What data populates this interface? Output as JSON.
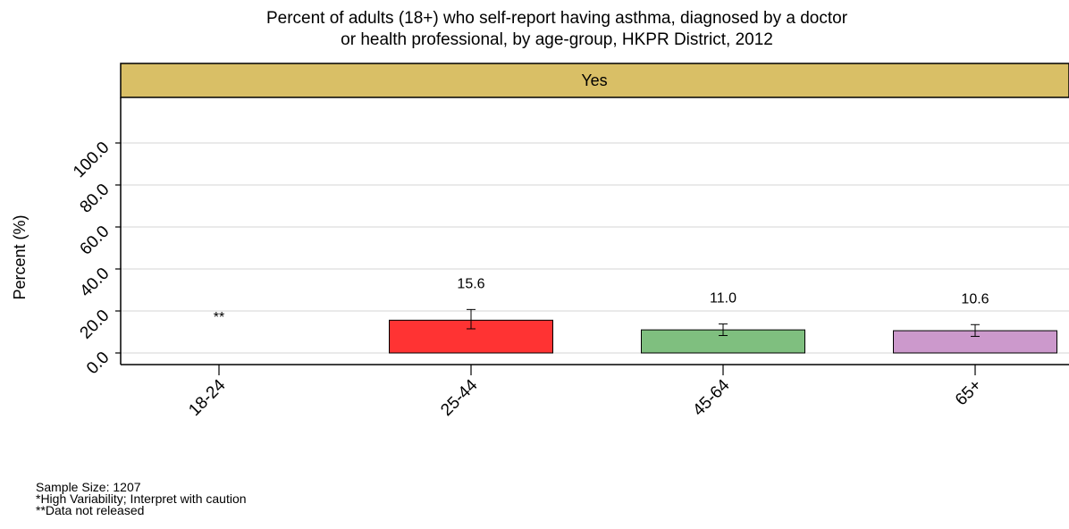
{
  "chart_data": {
    "type": "bar",
    "title": [
      "Percent of adults (18+) who self-report having asthma, diagnosed by a doctor",
      "or health professional, by age-group, HKPR District, 2012"
    ],
    "facet_label": "Yes",
    "xlabel": "",
    "ylabel": "Percent (%)",
    "ylim": [
      0,
      100
    ],
    "y_ticks": [
      "0.0",
      "20.0",
      "40.0",
      "60.0",
      "80.0",
      "100.0"
    ],
    "grid": "horizontal",
    "categories": [
      "18-24",
      "25-44",
      "45-64",
      "65+"
    ],
    "values": [
      null,
      15.6,
      11.0,
      10.6
    ],
    "labels": [
      "**",
      "15.6",
      "11.0",
      "10.6"
    ],
    "ci_low": [
      null,
      11.5,
      8.3,
      7.9
    ],
    "ci_high": [
      null,
      20.7,
      13.8,
      13.5
    ],
    "colors": [
      "#ffffff",
      "#ff3333",
      "#7fbf7f",
      "#cc99cc"
    ],
    "strip_color": "#d9bf66"
  },
  "notes": {
    "sample_size": "Sample Size: 1207",
    "high_variability": "*High Variability; Interpret with caution",
    "not_released": "**Data not released"
  }
}
